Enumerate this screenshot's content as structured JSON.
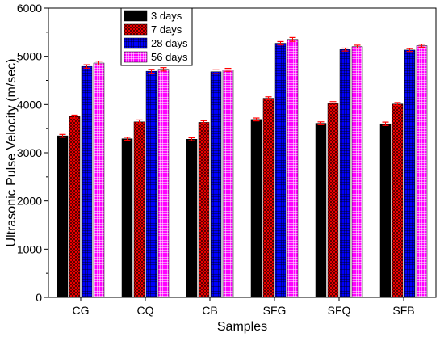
{
  "chart_data": {
    "type": "bar",
    "xlabel": "Samples",
    "ylabel": "Ultrasonic Pulse Velocity (m/sec)",
    "ylim": [
      0,
      6000
    ],
    "yticks": [
      0,
      1000,
      2000,
      3000,
      4000,
      5000,
      6000
    ],
    "categories": [
      "CG",
      "CQ",
      "CB",
      "SFG",
      "SFQ",
      "SFB"
    ],
    "legend_position": "top-left",
    "error_bar_color": "#ff0000",
    "series": [
      {
        "name": "3 days",
        "color": "#000000",
        "pattern": "solid",
        "values": [
          3350,
          3290,
          3280,
          3690,
          3610,
          3600
        ],
        "errors": [
          30,
          30,
          30,
          30,
          30,
          35
        ]
      },
      {
        "name": "7 days",
        "color": "#ff0000",
        "pattern": "crosshatch",
        "values": [
          3750,
          3640,
          3630,
          4130,
          4020,
          4010
        ],
        "errors": [
          30,
          40,
          35,
          30,
          40,
          30
        ]
      },
      {
        "name": "28 days",
        "color": "#0000ff",
        "pattern": "grid",
        "values": [
          4790,
          4690,
          4680,
          5270,
          5140,
          5130
        ],
        "errors": [
          35,
          40,
          40,
          35,
          30,
          30
        ]
      },
      {
        "name": "56 days",
        "color": "#ff00ff",
        "pattern": "grid",
        "values": [
          4860,
          4730,
          4720,
          5350,
          5200,
          5220
        ],
        "errors": [
          40,
          35,
          30,
          40,
          30,
          30
        ]
      }
    ]
  }
}
